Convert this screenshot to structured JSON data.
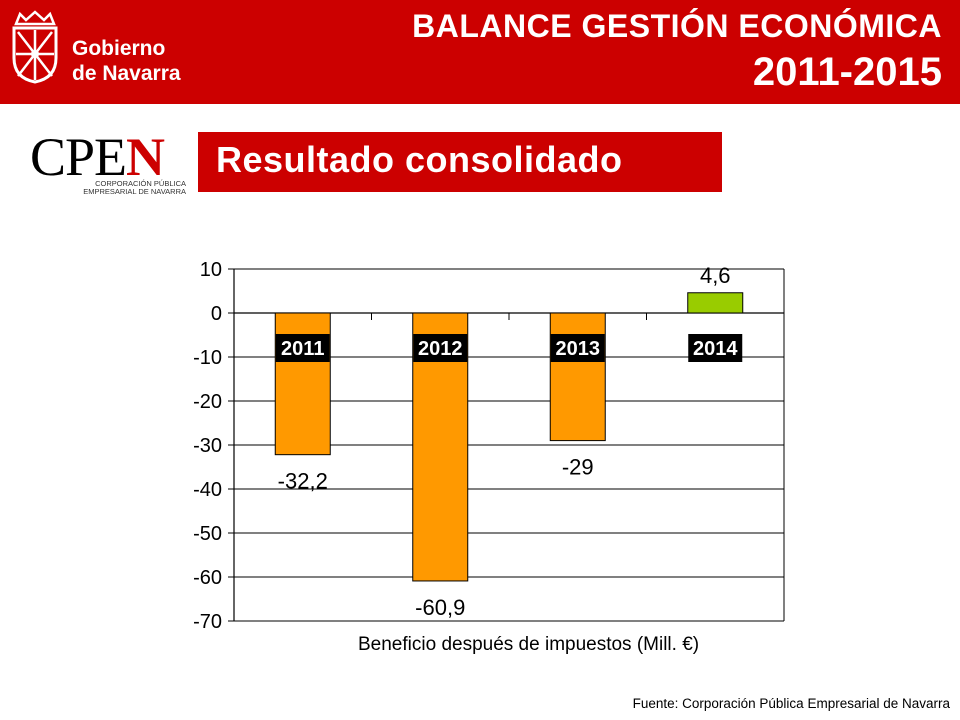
{
  "header": {
    "logo_line1": "Gobierno",
    "logo_line2": "de Navarra",
    "title": "BALANCE GESTIÓN ECONÓMICA",
    "years": "2011-2015",
    "colors": {
      "brand_red": "#cc0000",
      "white": "#ffffff"
    }
  },
  "cpen_logo": {
    "word_main": "CPE",
    "word_accent": "N",
    "sub_line1": "CORPORACIÓN PÚBLICA",
    "sub_line2": "EMPRESARIAL DE NAVARRA",
    "accent_color": "#cc0000"
  },
  "section_title": "Resultado consolidado",
  "caption": "Beneficio después de impuestos (Mill. €)",
  "source": "Fuente: Corporación Pública Empresarial de Navarra",
  "chart_data": {
    "type": "bar",
    "categories": [
      "2011",
      "2012",
      "2013",
      "2014"
    ],
    "values": [
      -32.2,
      -60.9,
      -29,
      4.6
    ],
    "value_labels": [
      "-32,2",
      "-60,9",
      "-29",
      "4,6"
    ],
    "bar_colors": [
      "#ff9900",
      "#ff9900",
      "#ff9900",
      "#99cc00"
    ],
    "ylim": [
      -70,
      10
    ],
    "yticks": [
      10,
      0,
      -10,
      -20,
      -30,
      -40,
      -50,
      -60,
      -70
    ],
    "grid": true,
    "category_label_style": "white text on black box",
    "xlabel": "Beneficio después de impuestos (Mill. €)",
    "ylabel": ""
  }
}
